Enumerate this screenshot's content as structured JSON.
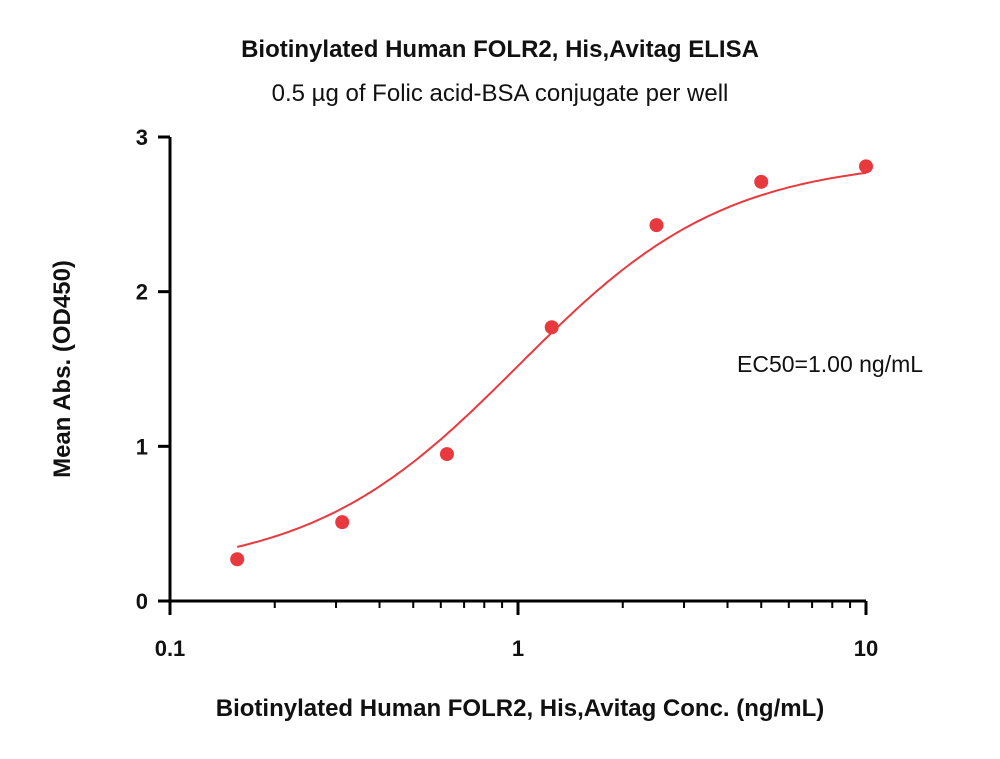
{
  "chart_data": {
    "type": "scatter",
    "title": "Biotinylated Human FOLR2, His,Avitag ELISA",
    "subtitle": "0.5 µg of Folic acid-BSA conjugate per well",
    "xlabel": "Biotinylated Human FOLR2, His,Avitag Conc. (ng/mL)",
    "ylabel": "Mean Abs. (OD450)",
    "x_scale": "log",
    "xlim": [
      0.1,
      10
    ],
    "ylim": [
      0,
      3
    ],
    "x_ticks": [
      "0.1",
      "1",
      "10"
    ],
    "y_ticks": [
      "0",
      "1",
      "2",
      "3"
    ],
    "grid": false,
    "color": "#e8393f",
    "annotation": "EC50=1.00 ng/mL",
    "series": [
      {
        "x": [
          0.156,
          0.3125,
          0.625,
          1.25,
          2.5,
          5,
          10
        ],
        "y": [
          0.27,
          0.51,
          0.95,
          1.77,
          2.43,
          2.71,
          2.81
        ]
      }
    ],
    "fit": {
      "bottom": 0.18,
      "top": 2.86,
      "ec50": 1.0,
      "hill": 1.45
    }
  }
}
